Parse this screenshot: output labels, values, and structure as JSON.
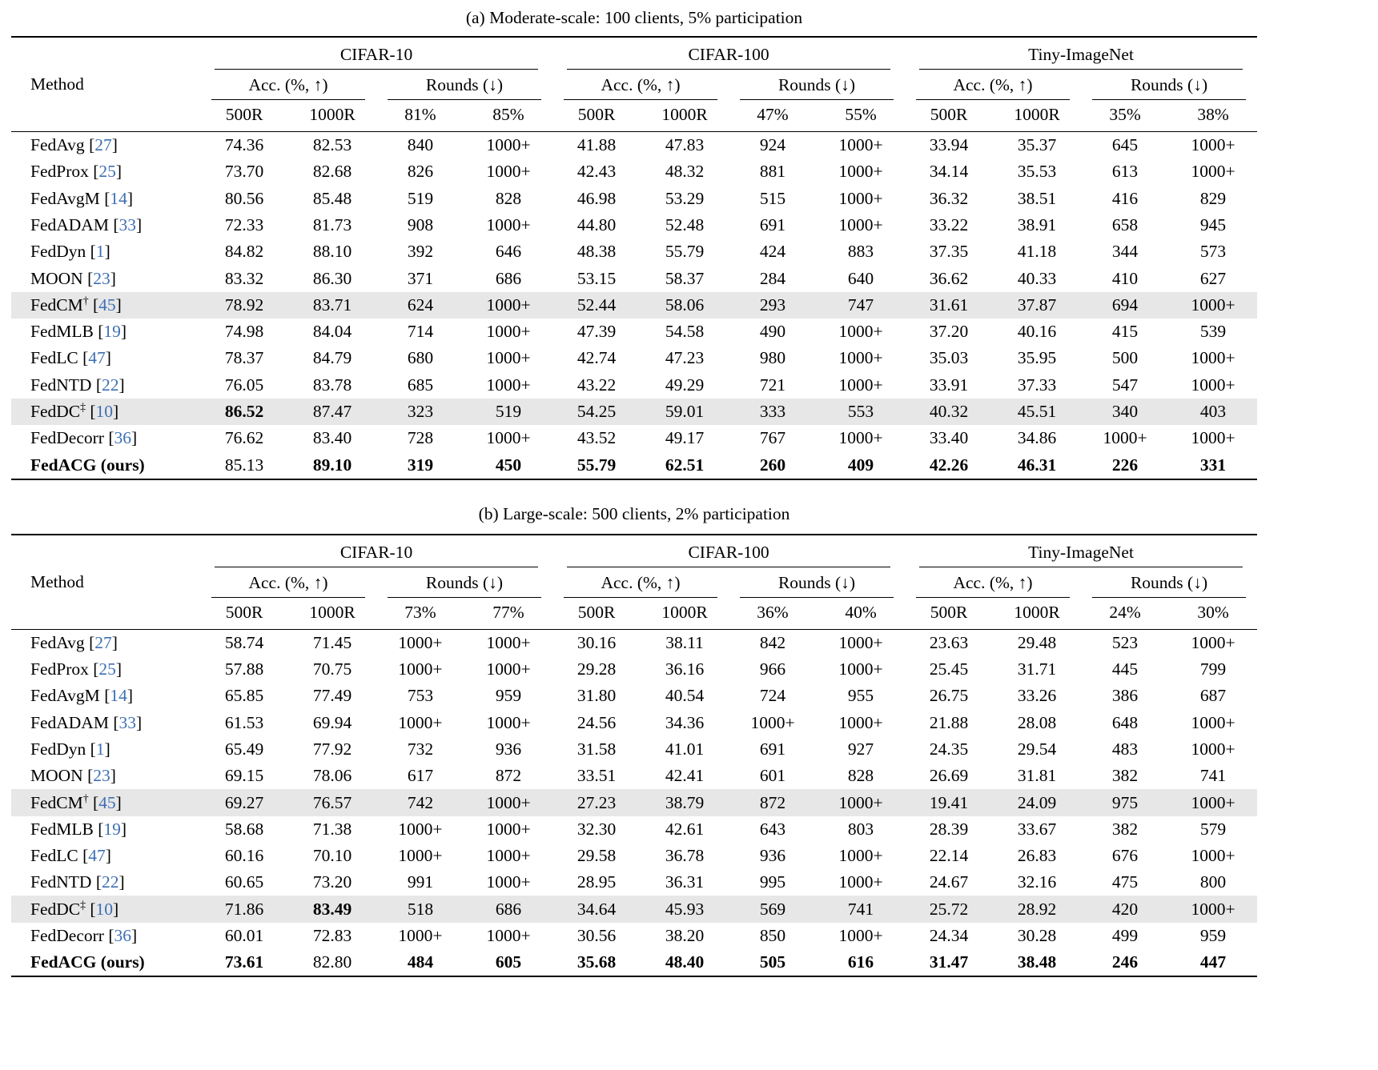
{
  "colors": {
    "citation": "#3d6fb3",
    "row_shade": "#e7e7e7"
  },
  "tables": [
    {
      "caption": "(a) Moderate-scale: 100 clients, 5% participation",
      "method_header": "Method",
      "groups": [
        {
          "name": "CIFAR-10",
          "acc_label": "Acc. (%, ↑)",
          "rounds_label": "Rounds (↓)",
          "subcols": [
            "500R",
            "1000R",
            "81%",
            "85%"
          ]
        },
        {
          "name": "CIFAR-100",
          "acc_label": "Acc. (%, ↑)",
          "rounds_label": "Rounds (↓)",
          "subcols": [
            "500R",
            "1000R",
            "47%",
            "55%"
          ]
        },
        {
          "name": "Tiny-ImageNet",
          "acc_label": "Acc. (%, ↑)",
          "rounds_label": "Rounds (↓)",
          "subcols": [
            "500R",
            "1000R",
            "35%",
            "38%"
          ]
        }
      ],
      "rows": [
        {
          "method": "FedAvg",
          "sup": "",
          "cite": "27",
          "shaded": false,
          "bold_method": false,
          "bold": [],
          "values": [
            "74.36",
            "82.53",
            "840",
            "1000+",
            "41.88",
            "47.83",
            "924",
            "1000+",
            "33.94",
            "35.37",
            "645",
            "1000+"
          ]
        },
        {
          "method": "FedProx",
          "sup": "",
          "cite": "25",
          "shaded": false,
          "bold_method": false,
          "bold": [],
          "values": [
            "73.70",
            "82.68",
            "826",
            "1000+",
            "42.43",
            "48.32",
            "881",
            "1000+",
            "34.14",
            "35.53",
            "613",
            "1000+"
          ]
        },
        {
          "method": "FedAvgM",
          "sup": "",
          "cite": "14",
          "shaded": false,
          "bold_method": false,
          "bold": [],
          "values": [
            "80.56",
            "85.48",
            "519",
            "828",
            "46.98",
            "53.29",
            "515",
            "1000+",
            "36.32",
            "38.51",
            "416",
            "829"
          ]
        },
        {
          "method": "FedADAM",
          "sup": "",
          "cite": "33",
          "shaded": false,
          "bold_method": false,
          "bold": [],
          "values": [
            "72.33",
            "81.73",
            "908",
            "1000+",
            "44.80",
            "52.48",
            "691",
            "1000+",
            "33.22",
            "38.91",
            "658",
            "945"
          ]
        },
        {
          "method": "FedDyn",
          "sup": "",
          "cite": "1",
          "shaded": false,
          "bold_method": false,
          "bold": [],
          "values": [
            "84.82",
            "88.10",
            "392",
            "646",
            "48.38",
            "55.79",
            "424",
            "883",
            "37.35",
            "41.18",
            "344",
            "573"
          ]
        },
        {
          "method": "MOON",
          "sup": "",
          "cite": "23",
          "shaded": false,
          "bold_method": false,
          "bold": [],
          "values": [
            "83.32",
            "86.30",
            "371",
            "686",
            "53.15",
            "58.37",
            "284",
            "640",
            "36.62",
            "40.33",
            "410",
            "627"
          ]
        },
        {
          "method": "FedCM",
          "sup": "†",
          "cite": "45",
          "shaded": true,
          "bold_method": false,
          "bold": [],
          "values": [
            "78.92",
            "83.71",
            "624",
            "1000+",
            "52.44",
            "58.06",
            "293",
            "747",
            "31.61",
            "37.87",
            "694",
            "1000+"
          ]
        },
        {
          "method": "FedMLB",
          "sup": "",
          "cite": "19",
          "shaded": false,
          "bold_method": false,
          "bold": [],
          "values": [
            "74.98",
            "84.04",
            "714",
            "1000+",
            "47.39",
            "54.58",
            "490",
            "1000+",
            "37.20",
            "40.16",
            "415",
            "539"
          ]
        },
        {
          "method": "FedLC",
          "sup": "",
          "cite": "47",
          "shaded": false,
          "bold_method": false,
          "bold": [],
          "values": [
            "78.37",
            "84.79",
            "680",
            "1000+",
            "42.74",
            "47.23",
            "980",
            "1000+",
            "35.03",
            "35.95",
            "500",
            "1000+"
          ]
        },
        {
          "method": "FedNTD",
          "sup": "",
          "cite": "22",
          "shaded": false,
          "bold_method": false,
          "bold": [],
          "values": [
            "76.05",
            "83.78",
            "685",
            "1000+",
            "43.22",
            "49.29",
            "721",
            "1000+",
            "33.91",
            "37.33",
            "547",
            "1000+"
          ]
        },
        {
          "method": "FedDC",
          "sup": "‡",
          "cite": "10",
          "shaded": true,
          "bold_method": false,
          "bold": [
            0
          ],
          "values": [
            "86.52",
            "87.47",
            "323",
            "519",
            "54.25",
            "59.01",
            "333",
            "553",
            "40.32",
            "45.51",
            "340",
            "403"
          ]
        },
        {
          "method": "FedDecorr",
          "sup": "",
          "cite": "36",
          "shaded": false,
          "bold_method": false,
          "bold": [],
          "values": [
            "76.62",
            "83.40",
            "728",
            "1000+",
            "43.52",
            "49.17",
            "767",
            "1000+",
            "33.40",
            "34.86",
            "1000+",
            "1000+"
          ]
        },
        {
          "method": "FedACG (ours)",
          "sup": "",
          "cite": "",
          "shaded": false,
          "bold_method": true,
          "bold": [
            1,
            2,
            3,
            4,
            5,
            6,
            7,
            8,
            9,
            10,
            11
          ],
          "values": [
            "85.13",
            "89.10",
            "319",
            "450",
            "55.79",
            "62.51",
            "260",
            "409",
            "42.26",
            "46.31",
            "226",
            "331"
          ]
        }
      ]
    },
    {
      "caption": "(b) Large-scale: 500 clients, 2% participation",
      "method_header": "Method",
      "groups": [
        {
          "name": "CIFAR-10",
          "acc_label": "Acc. (%, ↑)",
          "rounds_label": "Rounds (↓)",
          "subcols": [
            "500R",
            "1000R",
            "73%",
            "77%"
          ]
        },
        {
          "name": "CIFAR-100",
          "acc_label": "Acc. (%, ↑)",
          "rounds_label": "Rounds (↓)",
          "subcols": [
            "500R",
            "1000R",
            "36%",
            "40%"
          ]
        },
        {
          "name": "Tiny-ImageNet",
          "acc_label": "Acc. (%, ↑)",
          "rounds_label": "Rounds (↓)",
          "subcols": [
            "500R",
            "1000R",
            "24%",
            "30%"
          ]
        }
      ],
      "rows": [
        {
          "method": "FedAvg",
          "sup": "",
          "cite": "27",
          "shaded": false,
          "bold_method": false,
          "bold": [],
          "values": [
            "58.74",
            "71.45",
            "1000+",
            "1000+",
            "30.16",
            "38.11",
            "842",
            "1000+",
            "23.63",
            "29.48",
            "523",
            "1000+"
          ]
        },
        {
          "method": "FedProx",
          "sup": "",
          "cite": "25",
          "shaded": false,
          "bold_method": false,
          "bold": [],
          "values": [
            "57.88",
            "70.75",
            "1000+",
            "1000+",
            "29.28",
            "36.16",
            "966",
            "1000+",
            "25.45",
            "31.71",
            "445",
            "799"
          ]
        },
        {
          "method": "FedAvgM",
          "sup": "",
          "cite": "14",
          "shaded": false,
          "bold_method": false,
          "bold": [],
          "values": [
            "65.85",
            "77.49",
            "753",
            "959",
            "31.80",
            "40.54",
            "724",
            "955",
            "26.75",
            "33.26",
            "386",
            "687"
          ]
        },
        {
          "method": "FedADAM",
          "sup": "",
          "cite": "33",
          "shaded": false,
          "bold_method": false,
          "bold": [],
          "values": [
            "61.53",
            "69.94",
            "1000+",
            "1000+",
            "24.56",
            "34.36",
            "1000+",
            "1000+",
            "21.88",
            "28.08",
            "648",
            "1000+"
          ]
        },
        {
          "method": "FedDyn",
          "sup": "",
          "cite": "1",
          "shaded": false,
          "bold_method": false,
          "bold": [],
          "values": [
            "65.49",
            "77.92",
            "732",
            "936",
            "31.58",
            "41.01",
            "691",
            "927",
            "24.35",
            "29.54",
            "483",
            "1000+"
          ]
        },
        {
          "method": "MOON",
          "sup": "",
          "cite": "23",
          "shaded": false,
          "bold_method": false,
          "bold": [],
          "values": [
            "69.15",
            "78.06",
            "617",
            "872",
            "33.51",
            "42.41",
            "601",
            "828",
            "26.69",
            "31.81",
            "382",
            "741"
          ]
        },
        {
          "method": "FedCM",
          "sup": "†",
          "cite": "45",
          "shaded": true,
          "bold_method": false,
          "bold": [],
          "values": [
            "69.27",
            "76.57",
            "742",
            "1000+",
            "27.23",
            "38.79",
            "872",
            "1000+",
            "19.41",
            "24.09",
            "975",
            "1000+"
          ]
        },
        {
          "method": "FedMLB",
          "sup": "",
          "cite": "19",
          "shaded": false,
          "bold_method": false,
          "bold": [],
          "values": [
            "58.68",
            "71.38",
            "1000+",
            "1000+",
            "32.30",
            "42.61",
            "643",
            "803",
            "28.39",
            "33.67",
            "382",
            "579"
          ]
        },
        {
          "method": "FedLC",
          "sup": "",
          "cite": "47",
          "shaded": false,
          "bold_method": false,
          "bold": [],
          "values": [
            "60.16",
            "70.10",
            "1000+",
            "1000+",
            "29.58",
            "36.78",
            "936",
            "1000+",
            "22.14",
            "26.83",
            "676",
            "1000+"
          ]
        },
        {
          "method": "FedNTD",
          "sup": "",
          "cite": "22",
          "shaded": false,
          "bold_method": false,
          "bold": [],
          "values": [
            "60.65",
            "73.20",
            "991",
            "1000+",
            "28.95",
            "36.31",
            "995",
            "1000+",
            "24.67",
            "32.16",
            "475",
            "800"
          ]
        },
        {
          "method": "FedDC",
          "sup": "‡",
          "cite": "10",
          "shaded": true,
          "bold_method": false,
          "bold": [
            1
          ],
          "values": [
            "71.86",
            "83.49",
            "518",
            "686",
            "34.64",
            "45.93",
            "569",
            "741",
            "25.72",
            "28.92",
            "420",
            "1000+"
          ]
        },
        {
          "method": "FedDecorr",
          "sup": "",
          "cite": "36",
          "shaded": false,
          "bold_method": false,
          "bold": [],
          "values": [
            "60.01",
            "72.83",
            "1000+",
            "1000+",
            "30.56",
            "38.20",
            "850",
            "1000+",
            "24.34",
            "30.28",
            "499",
            "959"
          ]
        },
        {
          "method": "FedACG (ours)",
          "sup": "",
          "cite": "",
          "shaded": false,
          "bold_method": true,
          "bold": [
            0,
            2,
            3,
            4,
            5,
            6,
            7,
            8,
            9,
            10,
            11
          ],
          "values": [
            "73.61",
            "82.80",
            "484",
            "605",
            "35.68",
            "48.40",
            "505",
            "616",
            "31.47",
            "38.48",
            "246",
            "447"
          ]
        }
      ]
    }
  ]
}
